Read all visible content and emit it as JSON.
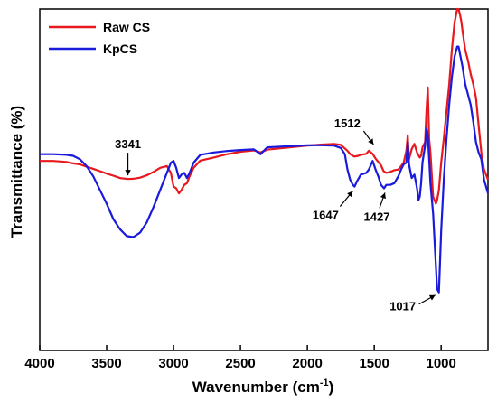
{
  "chart_data": {
    "type": "line",
    "xlabel_main": "Wavenumber (cm",
    "xlabel_sup": "-1",
    "xlabel_end": ")",
    "ylabel": "Transmittance (%)",
    "xlim": [
      4000,
      650
    ],
    "ylim": [
      0,
      100
    ],
    "x_reversed": true,
    "y_ticks_shown": false,
    "grid": false,
    "legend_position": "top-left",
    "xticks": [
      4000,
      3500,
      3000,
      2500,
      2000,
      1500,
      1000
    ],
    "series": [
      {
        "name": "Raw CS",
        "color": "#e8191e",
        "x": [
          4000,
          3900,
          3800,
          3750,
          3700,
          3650,
          3600,
          3550,
          3500,
          3450,
          3400,
          3341,
          3300,
          3250,
          3200,
          3150,
          3100,
          3050,
          3020,
          3000,
          2980,
          2960,
          2940,
          2920,
          2900,
          2880,
          2850,
          2800,
          2700,
          2600,
          2500,
          2400,
          2350,
          2300,
          2200,
          2100,
          2000,
          1900,
          1800,
          1750,
          1700,
          1680,
          1660,
          1647,
          1620,
          1600,
          1560,
          1540,
          1512,
          1490,
          1470,
          1450,
          1430,
          1410,
          1380,
          1350,
          1320,
          1300,
          1280,
          1260,
          1250,
          1240,
          1230,
          1220,
          1200,
          1180,
          1160,
          1150,
          1140,
          1120,
          1110,
          1100,
          1090,
          1080,
          1060,
          1040,
          1030,
          1017,
          1000,
          980,
          960,
          940,
          920,
          900,
          880,
          870,
          860,
          850,
          840,
          820,
          800,
          780,
          760,
          740,
          720,
          700,
          680,
          650
        ],
        "y": [
          55.5,
          55.5,
          55.2,
          54.8,
          54.5,
          53.8,
          53.2,
          52.5,
          51.8,
          51.2,
          50.5,
          50.2,
          50.3,
          50.6,
          51.3,
          52.3,
          53.5,
          54.0,
          52.0,
          48.0,
          47.5,
          46.0,
          47.0,
          48.5,
          49.0,
          51.0,
          53.5,
          55.6,
          56.5,
          57.5,
          58.2,
          58.6,
          58.0,
          58.8,
          59.2,
          59.6,
          60.0,
          60.3,
          60.5,
          60.2,
          58.5,
          57.5,
          57.0,
          56.8,
          57.0,
          57.3,
          57.6,
          58.5,
          57.6,
          56.2,
          55.2,
          54.2,
          52.5,
          52.0,
          52.3,
          52.8,
          53.0,
          54.0,
          55.0,
          58.5,
          63.0,
          56.0,
          57.5,
          59.0,
          60.5,
          58.0,
          56.5,
          57.0,
          59.5,
          61.0,
          70.0,
          77.0,
          62.0,
          58.0,
          45.0,
          43.0,
          44.0,
          47.0,
          55.0,
          62.0,
          70.0,
          78.0,
          88.0,
          96.0,
          100.0,
          100.0,
          98.5,
          96.5,
          93.5,
          88.0,
          85.0,
          81.0,
          78.0,
          74.0,
          66.0,
          58.0,
          53.0,
          50.0
        ]
      },
      {
        "name": "KpCS",
        "color": "#1a1adc",
        "x": [
          4000,
          3900,
          3800,
          3750,
          3700,
          3650,
          3600,
          3550,
          3500,
          3450,
          3400,
          3350,
          3300,
          3250,
          3200,
          3150,
          3100,
          3050,
          3020,
          3000,
          2980,
          2960,
          2940,
          2920,
          2900,
          2880,
          2850,
          2800,
          2700,
          2600,
          2500,
          2400,
          2350,
          2300,
          2200,
          2100,
          2000,
          1900,
          1800,
          1750,
          1720,
          1700,
          1680,
          1660,
          1647,
          1630,
          1600,
          1560,
          1540,
          1512,
          1490,
          1470,
          1450,
          1427,
          1410,
          1380,
          1350,
          1320,
          1300,
          1280,
          1260,
          1250,
          1240,
          1230,
          1220,
          1200,
          1180,
          1170,
          1160,
          1150,
          1140,
          1120,
          1110,
          1100,
          1090,
          1080,
          1060,
          1040,
          1030,
          1017,
          1000,
          980,
          960,
          940,
          920,
          900,
          880,
          870,
          860,
          850,
          840,
          820,
          800,
          780,
          760,
          740,
          720,
          700,
          680,
          650
        ],
        "y": [
          57.5,
          57.5,
          57.3,
          57.0,
          56.0,
          54.0,
          51.0,
          47.0,
          43.0,
          38.5,
          35.5,
          33.5,
          33.2,
          34.5,
          37.5,
          42.0,
          47.0,
          52.0,
          55.0,
          55.5,
          53.5,
          50.5,
          51.5,
          52.0,
          50.5,
          52.0,
          55.0,
          57.3,
          58.0,
          58.4,
          58.7,
          58.9,
          57.5,
          59.5,
          59.7,
          59.9,
          60.1,
          60.1,
          60.0,
          59.3,
          57.5,
          53.0,
          50.0,
          48.5,
          48.0,
          49.5,
          51.5,
          52.0,
          53.0,
          55.5,
          53.0,
          51.0,
          48.5,
          47.5,
          48.5,
          48.5,
          49.0,
          51.0,
          53.0,
          54.5,
          55.0,
          61.0,
          54.5,
          52.5,
          50.5,
          51.5,
          47.5,
          44.0,
          45.0,
          49.0,
          55.0,
          60.0,
          65.0,
          63.0,
          56.0,
          49.0,
          40.0,
          25.0,
          18.0,
          17.0,
          35.0,
          50.0,
          62.0,
          72.0,
          80.0,
          86.0,
          89.0,
          89.0,
          87.0,
          85.0,
          83.0,
          78.0,
          75.0,
          72.0,
          67.0,
          61.0,
          58.0,
          56.0,
          50.0,
          46.0
        ]
      }
    ],
    "annotations": [
      {
        "label": "3341",
        "x": 3341,
        "y": 50.5,
        "dir": "down"
      },
      {
        "label": "1512",
        "x": 1512,
        "y": 59.0,
        "dir": "down"
      },
      {
        "label": "1647",
        "x": 1647,
        "y": 48.0,
        "dir": "up-left"
      },
      {
        "label": "1427",
        "x": 1427,
        "y": 47.5,
        "dir": "up-right"
      },
      {
        "label": "1017",
        "x": 1017,
        "y": 17.0,
        "dir": "up-left-low"
      }
    ]
  }
}
